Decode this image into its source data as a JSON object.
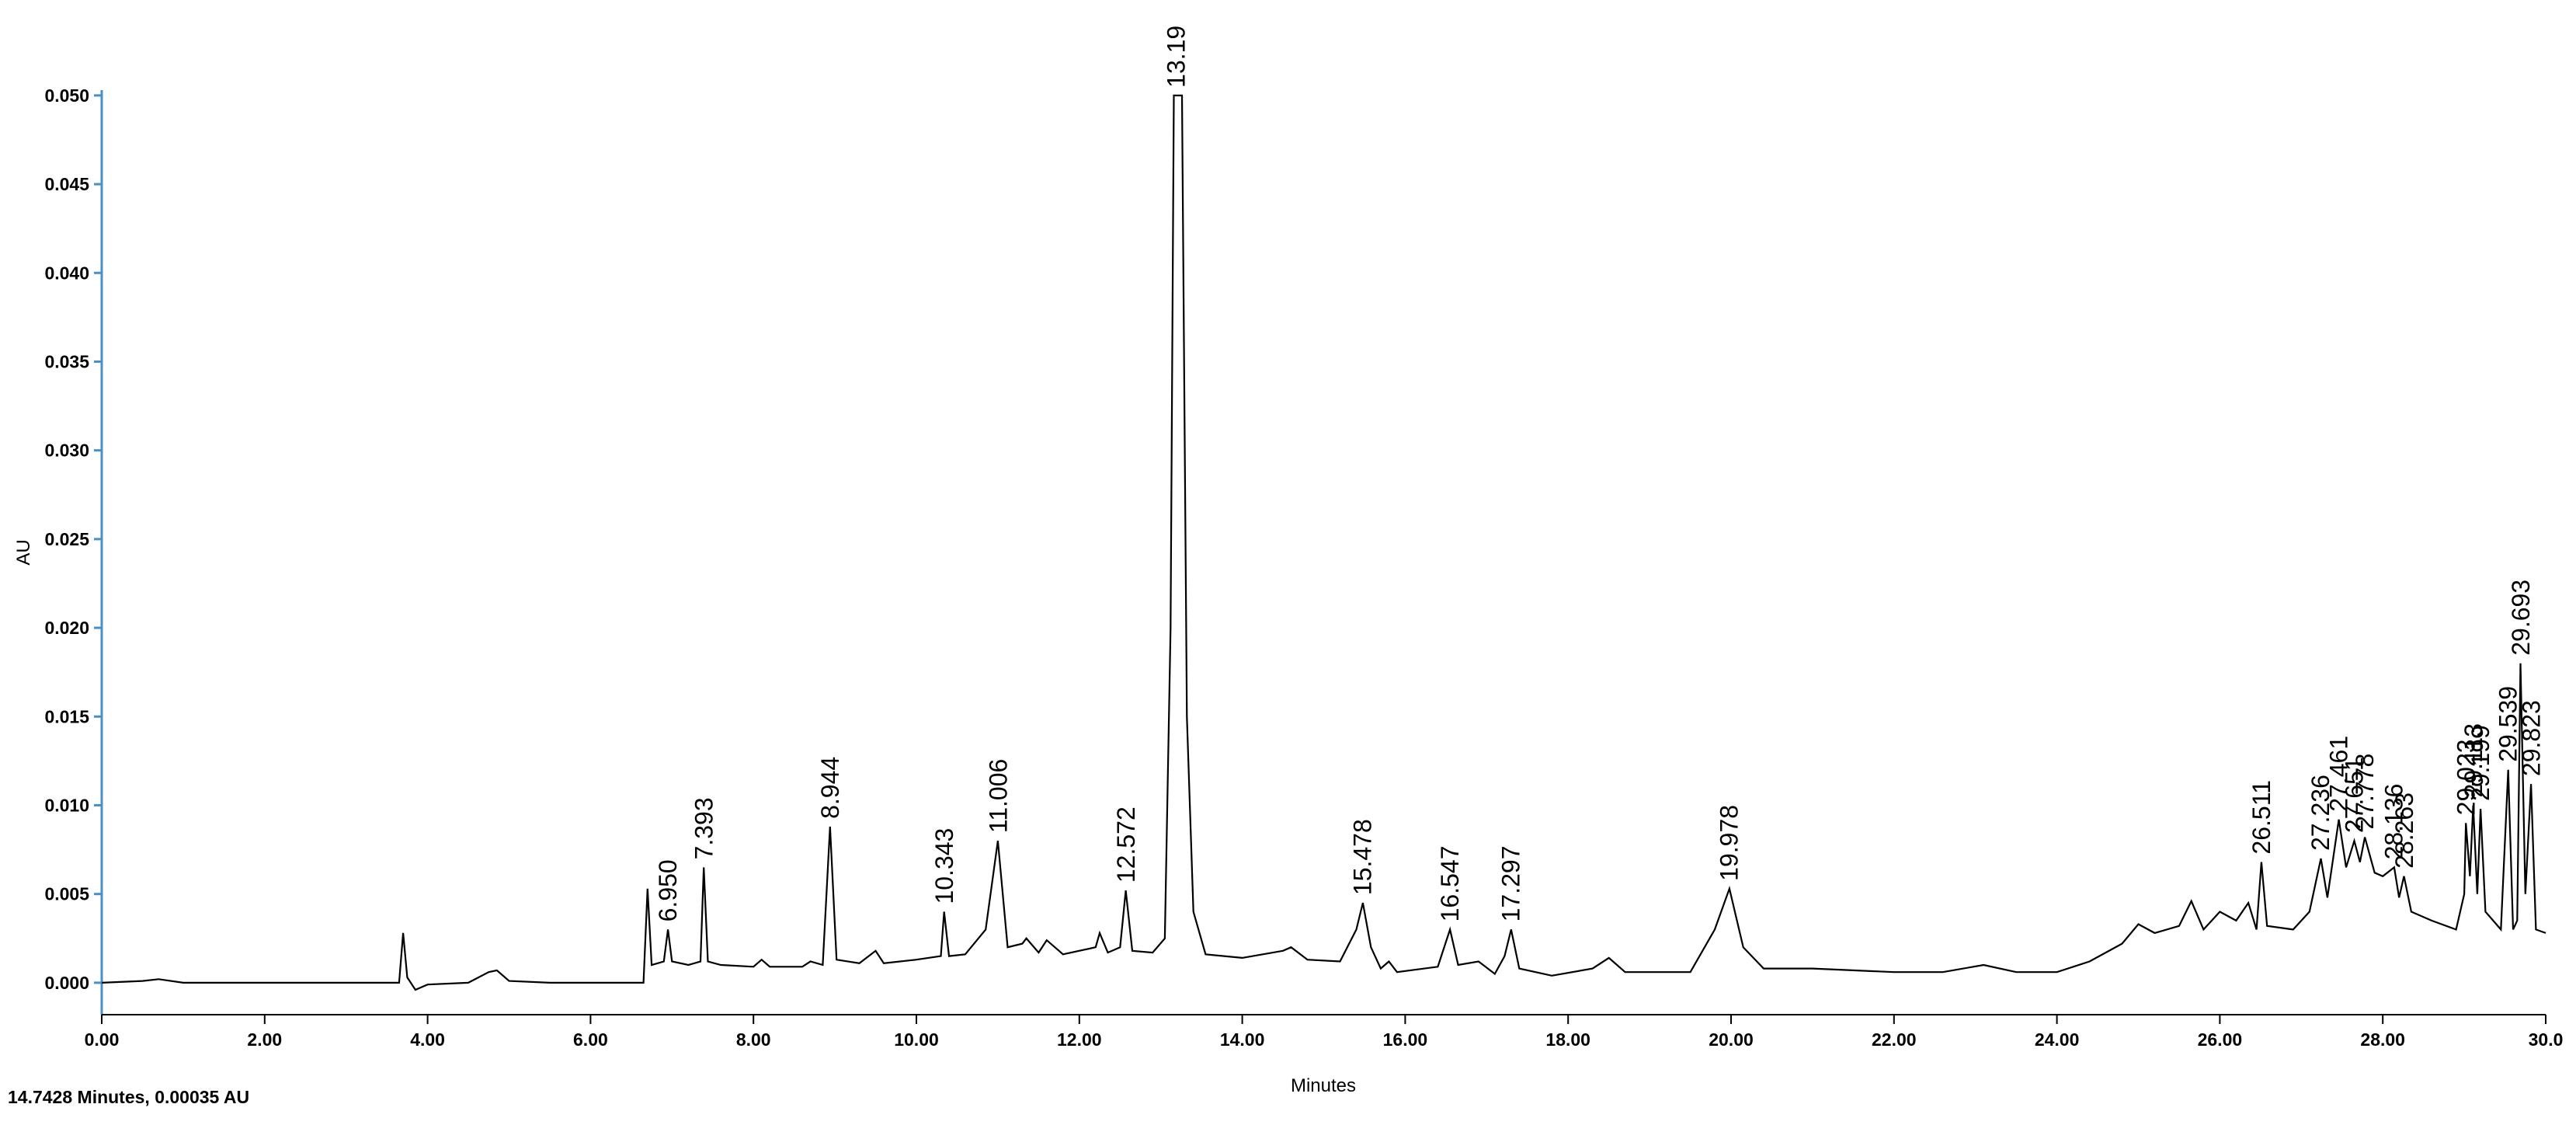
{
  "chart_data": {
    "type": "line",
    "color": "#000000",
    "xlabel": "Minutes",
    "ylabel": "AU",
    "cursor_readout": "14.7428 Minutes, 0.00035 AU",
    "xlim": [
      0,
      30
    ],
    "ylim": [
      -0.0018,
      0.0503
    ],
    "xticks": [
      {
        "value": 0,
        "label": "0.00"
      },
      {
        "value": 2,
        "label": "2.00"
      },
      {
        "value": 4,
        "label": "4.00"
      },
      {
        "value": 6,
        "label": "6.00"
      },
      {
        "value": 8,
        "label": "8.00"
      },
      {
        "value": 10,
        "label": "10.00"
      },
      {
        "value": 12,
        "label": "12.00"
      },
      {
        "value": 14,
        "label": "14.00"
      },
      {
        "value": 16,
        "label": "16.00"
      },
      {
        "value": 18,
        "label": "18.00"
      },
      {
        "value": 20,
        "label": "20.00"
      },
      {
        "value": 22,
        "label": "22.00"
      },
      {
        "value": 24,
        "label": "24.00"
      },
      {
        "value": 26,
        "label": "26.00"
      },
      {
        "value": 28,
        "label": "28.00"
      },
      {
        "value": 30,
        "label": "30.0"
      }
    ],
    "yticks": [
      {
        "value": 0,
        "label": "0.000"
      },
      {
        "value": 0.005,
        "label": "0.005"
      },
      {
        "value": 0.01,
        "label": "0.010"
      },
      {
        "value": 0.015,
        "label": "0.015"
      },
      {
        "value": 0.02,
        "label": "0.020"
      },
      {
        "value": 0.025,
        "label": "0.025"
      },
      {
        "value": 0.03,
        "label": "0.030"
      },
      {
        "value": 0.035,
        "label": "0.035"
      },
      {
        "value": 0.04,
        "label": "0.040"
      },
      {
        "value": 0.045,
        "label": "0.045"
      },
      {
        "value": 0.05,
        "label": "0.050"
      }
    ],
    "x": [
      0,
      0.5,
      0.7,
      1.0,
      2.0,
      3.0,
      3.65,
      3.7,
      3.75,
      3.85,
      4.0,
      4.5,
      4.75,
      4.85,
      5.0,
      5.5,
      6.0,
      6.65,
      6.7,
      6.75,
      6.9,
      6.95,
      7.0,
      7.2,
      7.35,
      7.39,
      7.44,
      7.6,
      8.0,
      8.1,
      8.2,
      8.6,
      8.7,
      8.85,
      8.94,
      9.02,
      9.3,
      9.5,
      9.6,
      10.0,
      10.3,
      10.34,
      10.4,
      10.6,
      10.85,
      11.0,
      11.12,
      11.3,
      11.35,
      11.5,
      11.6,
      11.8,
      12.2,
      12.25,
      12.35,
      12.5,
      12.57,
      12.65,
      12.9,
      13.05,
      13.12,
      13.16,
      13.26,
      13.32,
      13.4,
      13.55,
      14.0,
      14.5,
      14.6,
      14.8,
      15.2,
      15.4,
      15.48,
      15.58,
      15.7,
      15.8,
      15.9,
      16.4,
      16.55,
      16.65,
      16.9,
      17.1,
      17.22,
      17.3,
      17.4,
      17.8,
      18.3,
      18.5,
      18.7,
      19.5,
      19.8,
      19.98,
      20.15,
      20.4,
      21.0,
      22.0,
      22.6,
      23.1,
      23.5,
      24.0,
      24.4,
      24.8,
      25.0,
      25.2,
      25.5,
      25.65,
      25.8,
      26.0,
      26.2,
      26.35,
      26.45,
      26.51,
      26.58,
      26.9,
      27.1,
      27.24,
      27.32,
      27.46,
      27.55,
      27.65,
      27.72,
      27.78,
      27.9,
      28.0,
      28.14,
      28.2,
      28.26,
      28.35,
      28.6,
      28.9,
      29.0,
      29.02,
      29.07,
      29.11,
      29.16,
      29.2,
      29.26,
      29.45,
      29.54,
      29.6,
      29.65,
      29.69,
      29.75,
      29.82,
      29.88,
      30.0
    ],
    "values": [
      0.0,
      0.0001,
      0.0002,
      0.0,
      0.0,
      0.0,
      0.0,
      0.0028,
      0.0003,
      -0.0004,
      -0.0001,
      0.0,
      0.0006,
      0.0007,
      0.0001,
      0.0,
      0.0,
      0.0,
      0.0053,
      0.001,
      0.0012,
      0.003,
      0.0012,
      0.001,
      0.0012,
      0.0065,
      0.0012,
      0.001,
      0.0009,
      0.0013,
      0.0009,
      0.0009,
      0.0012,
      0.001,
      0.0088,
      0.0013,
      0.0011,
      0.0018,
      0.0011,
      0.0013,
      0.0015,
      0.004,
      0.0015,
      0.0016,
      0.003,
      0.008,
      0.002,
      0.0022,
      0.0025,
      0.0017,
      0.0024,
      0.0016,
      0.002,
      0.0028,
      0.0017,
      0.002,
      0.0052,
      0.0018,
      0.0017,
      0.0025,
      0.02,
      0.05,
      0.05,
      0.015,
      0.004,
      0.0016,
      0.0014,
      0.0018,
      0.002,
      0.0013,
      0.0012,
      0.003,
      0.0045,
      0.002,
      0.0008,
      0.0012,
      0.0006,
      0.0009,
      0.003,
      0.001,
      0.0012,
      0.0005,
      0.0015,
      0.003,
      0.0008,
      0.0004,
      0.0008,
      0.0014,
      0.0006,
      0.0006,
      0.003,
      0.0053,
      0.002,
      0.0008,
      0.0008,
      0.0006,
      0.0006,
      0.001,
      0.0006,
      0.0006,
      0.0012,
      0.0022,
      0.0033,
      0.0028,
      0.0032,
      0.0046,
      0.003,
      0.004,
      0.0035,
      0.0045,
      0.003,
      0.0068,
      0.0032,
      0.003,
      0.004,
      0.007,
      0.0048,
      0.0092,
      0.0065,
      0.008,
      0.0068,
      0.0082,
      0.0062,
      0.006,
      0.0065,
      0.0048,
      0.006,
      0.004,
      0.0035,
      0.003,
      0.005,
      0.009,
      0.006,
      0.01,
      0.005,
      0.0098,
      0.004,
      0.003,
      0.012,
      0.003,
      0.0035,
      0.018,
      0.005,
      0.0112,
      0.003,
      0.0028
    ],
    "peak_labels": [
      {
        "value": 6.95,
        "label": "6.950"
      },
      {
        "value": 7.393,
        "label": "7.393"
      },
      {
        "value": 8.944,
        "label": "8.944"
      },
      {
        "value": 10.343,
        "label": "10.343"
      },
      {
        "value": 11.006,
        "label": "11.006"
      },
      {
        "value": 12.572,
        "label": "12.572"
      },
      {
        "value": 13.19,
        "label": "13.19"
      },
      {
        "value": 15.478,
        "label": "15.478"
      },
      {
        "value": 16.547,
        "label": "16.547"
      },
      {
        "value": 17.297,
        "label": "17.297"
      },
      {
        "value": 19.978,
        "label": "19.978"
      },
      {
        "value": 26.511,
        "label": "26.511"
      },
      {
        "value": 27.236,
        "label": "27.236"
      },
      {
        "value": 27.461,
        "label": "27.461"
      },
      {
        "value": 27.651,
        "label": "27.651"
      },
      {
        "value": 27.778,
        "label": "27.778"
      },
      {
        "value": 28.136,
        "label": "28.136"
      },
      {
        "value": 28.263,
        "label": "28.263"
      },
      {
        "value": 29.023,
        "label": "29.023"
      },
      {
        "value": 29.113,
        "label": "29.113"
      },
      {
        "value": 29.199,
        "label": "29.199"
      },
      {
        "value": 29.539,
        "label": "29.539"
      },
      {
        "value": 29.693,
        "label": "29.693"
      },
      {
        "value": 29.823,
        "label": "29.823"
      }
    ]
  }
}
